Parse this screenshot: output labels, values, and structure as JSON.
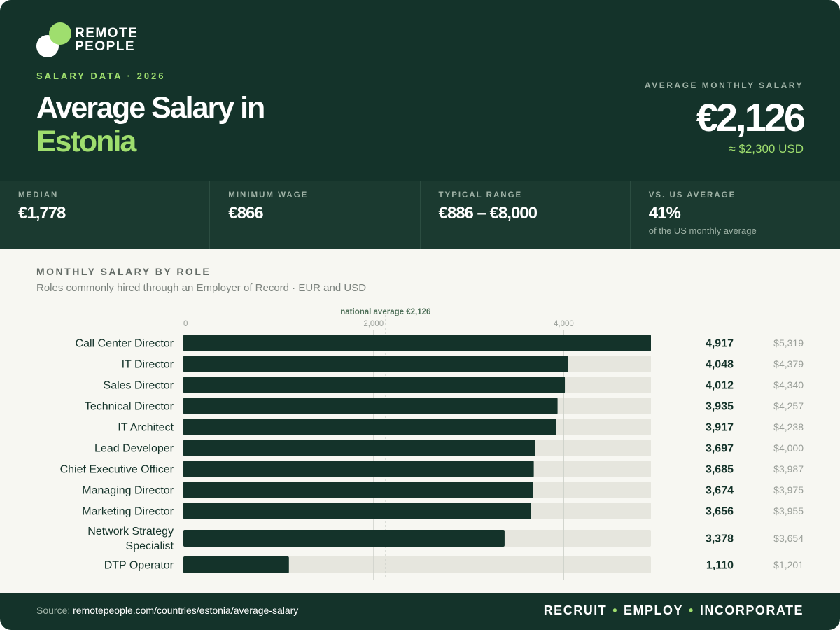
{
  "brand": {
    "line1": "REMOTE",
    "line2": "PEOPLE"
  },
  "header": {
    "eyebrow": "SALARY DATA · 2026",
    "title_line1": "Average Salary in",
    "title_line2": "Estonia",
    "hero_label": "AVERAGE MONTHLY SALARY",
    "hero_value": "€2,126",
    "hero_usd": "≈ $2,300 USD"
  },
  "stats": [
    {
      "label": "MEDIAN",
      "value": "€1,778",
      "note": ""
    },
    {
      "label": "MINIMUM WAGE",
      "value": "€866",
      "note": ""
    },
    {
      "label": "TYPICAL RANGE",
      "value": "€886 – €8,000",
      "note": ""
    },
    {
      "label": "VS. US AVERAGE",
      "value": "41%",
      "note": "of the US monthly average"
    }
  ],
  "section": {
    "title": "MONTHLY SALARY BY ROLE",
    "subtitle": "Roles commonly hired through an Employer of Record · EUR and USD"
  },
  "chart_data": {
    "type": "bar",
    "orientation": "horizontal",
    "categories": [
      "Call Center Director",
      "IT Director",
      "Sales Director",
      "Technical Director",
      "IT Architect",
      "Lead Developer",
      "Chief Executive Officer",
      "Managing Director",
      "Marketing Director",
      "Network Strategy Specialist",
      "DTP Operator"
    ],
    "category_lines": [
      [
        "Call Center Director"
      ],
      [
        "IT Director"
      ],
      [
        "Sales Director"
      ],
      [
        "Technical Director"
      ],
      [
        "IT Architect"
      ],
      [
        "Lead Developer"
      ],
      [
        "Chief Executive Officer"
      ],
      [
        "Managing Director"
      ],
      [
        "Marketing Director"
      ],
      [
        "Network Strategy",
        "Specialist"
      ],
      [
        "DTP Operator"
      ]
    ],
    "series": [
      {
        "values": [
          4917,
          4048,
          4012,
          3935,
          3917,
          3697,
          3685,
          3674,
          3656,
          3378,
          1110
        ]
      }
    ],
    "value_labels": [
      "4,917",
      "4,048",
      "4,012",
      "3,935",
      "3,917",
      "3,697",
      "3,685",
      "3,674",
      "3,656",
      "3,378",
      "1,110"
    ],
    "usd_labels": [
      "$5,319",
      "$4,379",
      "$4,340",
      "$4,257",
      "$4,238",
      "$4,000",
      "$3,987",
      "$3,975",
      "$3,955",
      "$3,654",
      "$1,201"
    ],
    "xlim": [
      0,
      4917
    ],
    "xticks": [
      0,
      2000,
      4000
    ],
    "xtick_labels": [
      "0",
      "2,000",
      "4,000"
    ],
    "reference_line": {
      "value": 2126,
      "label": "national average €2,126"
    },
    "grid": true,
    "colors": {
      "bar": "#14332a",
      "track": "#e6e6de",
      "grid": "#cfd2cb",
      "ref_label": "#4e6f58"
    }
  },
  "footer": {
    "source_prefix": "Source: ",
    "source_url": "remotepeople.com/countries/estonia/average-salary",
    "tag1": "RECRUIT",
    "tag2": "EMPLOY",
    "tag3": "INCORPORATE",
    "separator": "•"
  }
}
